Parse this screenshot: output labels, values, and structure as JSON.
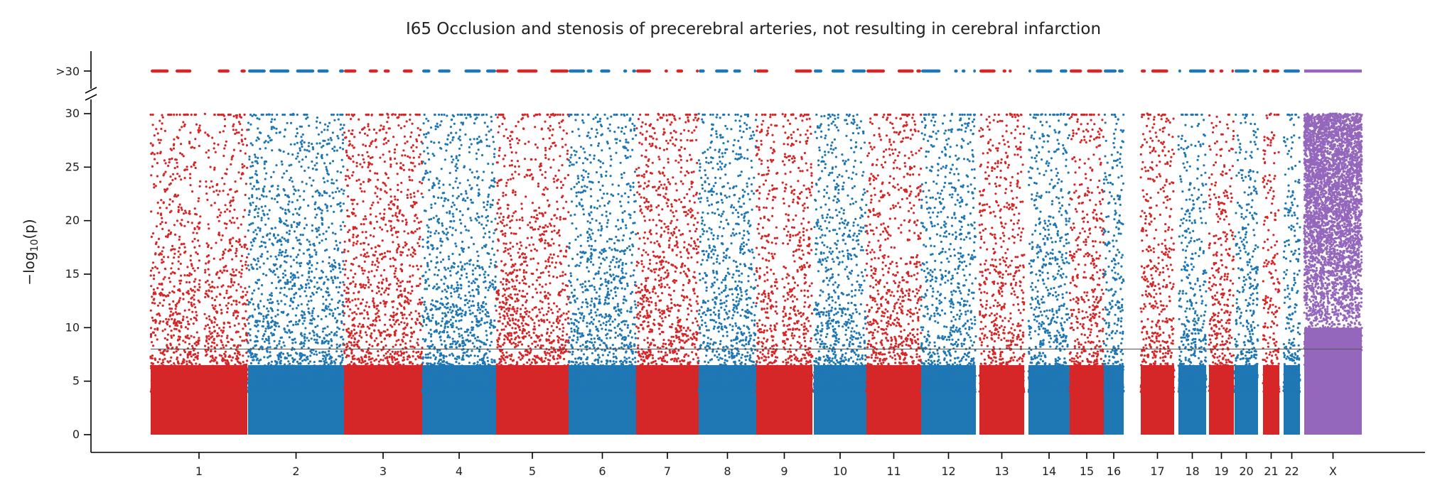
{
  "chart_data": {
    "type": "scatter",
    "subtype": "manhattan",
    "title": "I65 Occlusion and stenosis of precerebral arteries, not resulting in cerebral infarction",
    "ylabel_prefix": "−log",
    "ylabel_sub": "10",
    "ylabel_suffix": "(p)",
    "xlabel": "",
    "ylim": [
      0,
      30
    ],
    "yticks": [
      0,
      5,
      10,
      15,
      20,
      25,
      30
    ],
    "ytick_labels": [
      "0",
      "5",
      "10",
      "15",
      "20",
      "25",
      "30"
    ],
    "overflow_label": ">30",
    "significance_line": 8,
    "grid": false,
    "legend": "none",
    "colors": {
      "odd": "#d62728",
      "even": "#1f77b4",
      "x": "#9467bd",
      "threshold": "#555555"
    },
    "chromosomes": [
      {
        "label": "1",
        "color": "odd"
      },
      {
        "label": "2",
        "color": "even"
      },
      {
        "label": "3",
        "color": "odd"
      },
      {
        "label": "4",
        "color": "even"
      },
      {
        "label": "5",
        "color": "odd"
      },
      {
        "label": "6",
        "color": "even"
      },
      {
        "label": "7",
        "color": "odd"
      },
      {
        "label": "8",
        "color": "even"
      },
      {
        "label": "9",
        "color": "odd"
      },
      {
        "label": "10",
        "color": "even"
      },
      {
        "label": "11",
        "color": "odd"
      },
      {
        "label": "12",
        "color": "even"
      },
      {
        "label": "13",
        "color": "odd"
      },
      {
        "label": "14",
        "color": "even"
      },
      {
        "label": "15",
        "color": "odd"
      },
      {
        "label": "16",
        "color": "even"
      },
      {
        "label": "17",
        "color": "odd"
      },
      {
        "label": "18",
        "color": "even"
      },
      {
        "label": "19",
        "color": "odd"
      },
      {
        "label": "20",
        "color": "even"
      },
      {
        "label": "21",
        "color": "odd"
      },
      {
        "label": "22",
        "color": "even"
      },
      {
        "label": "X",
        "color": "x"
      }
    ]
  }
}
